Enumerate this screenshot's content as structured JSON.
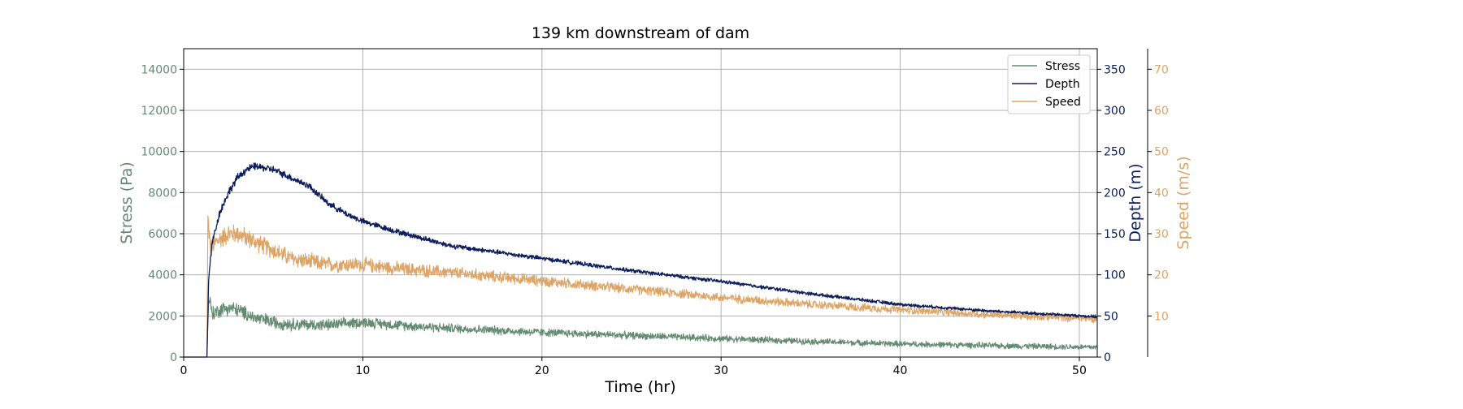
{
  "chart_data": {
    "type": "line",
    "title": "139 km downstream of dam",
    "xlabel": "Time (hr)",
    "xlim": [
      0,
      51
    ],
    "xticks": [
      0,
      10,
      20,
      30,
      40,
      50
    ],
    "grid": true,
    "legend": {
      "placement": "top-right",
      "entries": [
        "Stress",
        "Depth",
        "Speed"
      ]
    },
    "axes": {
      "stress": {
        "label": "Stress (Pa)",
        "side": "left",
        "ylim": [
          0,
          15000
        ],
        "ticks": [
          0,
          2000,
          4000,
          6000,
          8000,
          10000,
          12000,
          14000
        ],
        "color": "#648a72"
      },
      "depth": {
        "label": "Depth (m)",
        "side": "right",
        "ylim": [
          0,
          375
        ],
        "ticks": [
          0,
          50,
          100,
          150,
          200,
          250,
          300,
          350
        ],
        "color": "#0e1e5c"
      },
      "speed": {
        "label": "Speed (m/s)",
        "side": "right-offset",
        "ylim": [
          0,
          75
        ],
        "ticks": [
          10,
          20,
          30,
          40,
          50,
          60,
          70
        ],
        "color": "#dca466"
      }
    },
    "series": [
      {
        "name": "Stress",
        "axis": "stress",
        "color": "#648a72",
        "x": [
          0,
          1.3,
          1.4,
          1.6,
          2,
          2.5,
          3,
          4,
          5,
          6,
          8,
          10,
          12,
          15,
          20,
          25,
          30,
          35,
          40,
          45,
          51
        ],
        "y": [
          0,
          0,
          3000,
          2100,
          2300,
          2400,
          2300,
          1900,
          1700,
          1600,
          1550,
          1700,
          1550,
          1400,
          1200,
          1050,
          900,
          760,
          640,
          560,
          480
        ],
        "noise": 450
      },
      {
        "name": "Depth",
        "axis": "depth",
        "color": "#0e1e5c",
        "x": [
          0,
          1.3,
          1.4,
          1.6,
          2,
          2.5,
          3,
          3.5,
          4,
          5,
          6,
          7,
          8,
          9,
          10,
          12,
          15,
          20,
          25,
          30,
          35,
          40,
          45,
          51
        ],
        "y": [
          0,
          0,
          100,
          140,
          175,
          200,
          218,
          228,
          232,
          228,
          218,
          208,
          188,
          175,
          165,
          152,
          135,
          120,
          105,
          92,
          77,
          64,
          56,
          49
        ],
        "noise": 6
      },
      {
        "name": "Speed",
        "axis": "speed",
        "color": "#dca466",
        "x": [
          0,
          1.3,
          1.35,
          1.5,
          1.8,
          2.5,
          3,
          4,
          5,
          6,
          8,
          10,
          12,
          15,
          20,
          25,
          30,
          35,
          40,
          45,
          51
        ],
        "y": [
          0,
          0,
          34,
          26,
          28,
          30,
          30,
          28,
          26,
          24,
          22.5,
          22.5,
          21.5,
          20.5,
          18.5,
          16.5,
          14.5,
          12.8,
          11.5,
          10.3,
          9.3
        ],
        "noise": 3
      }
    ]
  }
}
